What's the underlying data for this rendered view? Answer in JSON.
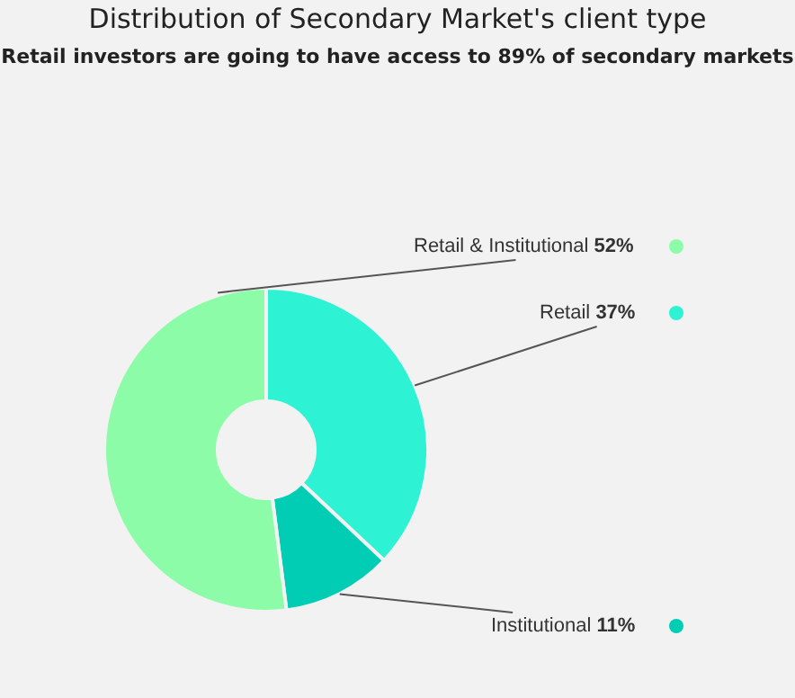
{
  "chart_data": {
    "type": "donut",
    "title": "Distribution of Secondary Market's client type",
    "subtitle": "Retail investors are going to have access to 89% of secondary markets",
    "categories": [
      "Retail",
      "Institutional",
      "Retail & Institutional"
    ],
    "values": [
      37,
      11,
      52
    ],
    "value_labels": [
      "37%",
      "11%",
      "52%"
    ],
    "colors": [
      "#2ef2d4",
      "#00cdb4",
      "#8cfca8"
    ]
  }
}
